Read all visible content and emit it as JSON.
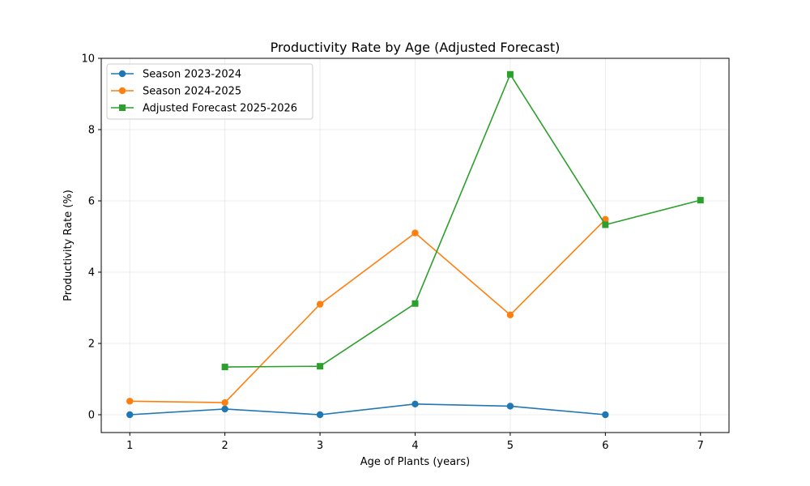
{
  "chart_data": {
    "type": "line",
    "title": "Productivity Rate by Age (Adjusted Forecast)",
    "xlabel": "Age of Plants (years)",
    "ylabel": "Productivity Rate (%)",
    "xlim": [
      0.7,
      7.3
    ],
    "ylim": [
      -0.5,
      10
    ],
    "xticks": [
      1,
      2,
      3,
      4,
      5,
      6,
      7
    ],
    "yticks": [
      0,
      2,
      4,
      6,
      8,
      10
    ],
    "grid": true,
    "legend_position": "top-left",
    "series": [
      {
        "name": "Season 2023-2024",
        "color": "#1f77b4",
        "marker": "circle",
        "x": [
          1,
          2,
          3,
          4,
          5,
          6
        ],
        "y": [
          0.0,
          0.16,
          0.0,
          0.3,
          0.24,
          0.0
        ]
      },
      {
        "name": "Season 2024-2025",
        "color": "#ff7f0e",
        "marker": "circle",
        "x": [
          1,
          2,
          3,
          4,
          5,
          6
        ],
        "y": [
          0.38,
          0.34,
          3.1,
          5.1,
          2.8,
          5.48
        ]
      },
      {
        "name": "Adjusted Forecast 2025-2026",
        "color": "#2ca02c",
        "marker": "square",
        "x": [
          2,
          3,
          4,
          5,
          6,
          7
        ],
        "y": [
          1.34,
          1.36,
          3.12,
          9.55,
          5.33,
          6.02
        ]
      }
    ]
  }
}
